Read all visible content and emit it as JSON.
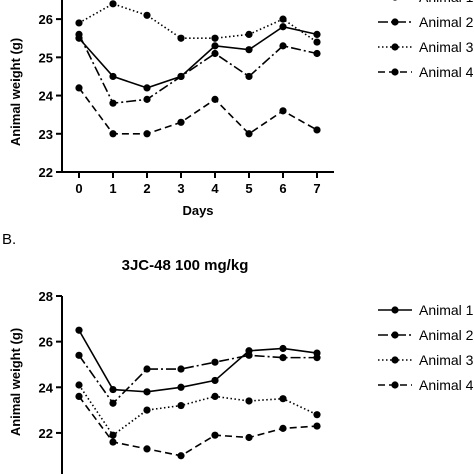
{
  "chart_data": [
    {
      "type": "line",
      "title": "",
      "xlabel": "Days",
      "ylabel": "Animal weight (g)",
      "x": [
        0,
        1,
        2,
        3,
        4,
        5,
        6,
        7
      ],
      "xlim": [
        -0.5,
        7.5
      ],
      "ylim": [
        22,
        26.5
      ],
      "yticks": [
        22,
        23,
        24,
        25,
        26
      ],
      "grid": false,
      "legend": "right",
      "series": [
        {
          "name": "Animal 1",
          "style": "solid",
          "values": [
            25.5,
            24.5,
            24.2,
            24.5,
            25.3,
            25.2,
            25.8,
            25.6
          ]
        },
        {
          "name": "Animal 2",
          "style": "dashdot",
          "values": [
            25.6,
            23.8,
            23.9,
            24.5,
            25.1,
            24.5,
            25.3,
            25.1
          ]
        },
        {
          "name": "Animal 3",
          "style": "dotted",
          "values": [
            25.9,
            26.4,
            26.1,
            25.5,
            25.5,
            25.6,
            26.0,
            25.4
          ]
        },
        {
          "name": "Animal 4",
          "style": "dashed",
          "values": [
            24.2,
            23.0,
            23.0,
            23.3,
            23.9,
            23.0,
            23.6,
            23.1
          ]
        }
      ]
    },
    {
      "type": "line",
      "panel_label": "B.",
      "title": "3JC-48 100 mg/kg",
      "xlabel": "",
      "ylabel": "Animal weight (g)",
      "x": [
        0,
        1,
        2,
        3,
        4,
        5,
        6,
        7
      ],
      "xlim": [
        -0.5,
        7.5
      ],
      "ylim": [
        20.2,
        28
      ],
      "yticks": [
        22,
        24,
        26,
        28
      ],
      "grid": false,
      "legend": "right",
      "series": [
        {
          "name": "Animal 1",
          "style": "solid",
          "values": [
            26.5,
            23.9,
            23.8,
            24.0,
            24.3,
            25.6,
            25.7,
            25.5
          ]
        },
        {
          "name": "Animal 2",
          "style": "dashdot",
          "values": [
            25.4,
            23.3,
            24.8,
            24.8,
            25.1,
            25.4,
            25.3,
            25.3
          ]
        },
        {
          "name": "Animal 3",
          "style": "dotted",
          "values": [
            24.1,
            21.9,
            23.0,
            23.2,
            23.6,
            23.4,
            23.5,
            22.8
          ]
        },
        {
          "name": "Animal 4",
          "style": "dashed",
          "values": [
            23.6,
            21.6,
            21.3,
            21.0,
            21.9,
            21.8,
            22.2,
            22.3
          ]
        }
      ]
    }
  ],
  "legend_display": {
    "top": [
      "Animal 1",
      "Animal 2",
      "Animal 3",
      "Animal 4"
    ],
    "bottom": [
      "Animal 1",
      "Animal 2",
      "Animal 3",
      "Animal 4"
    ]
  }
}
